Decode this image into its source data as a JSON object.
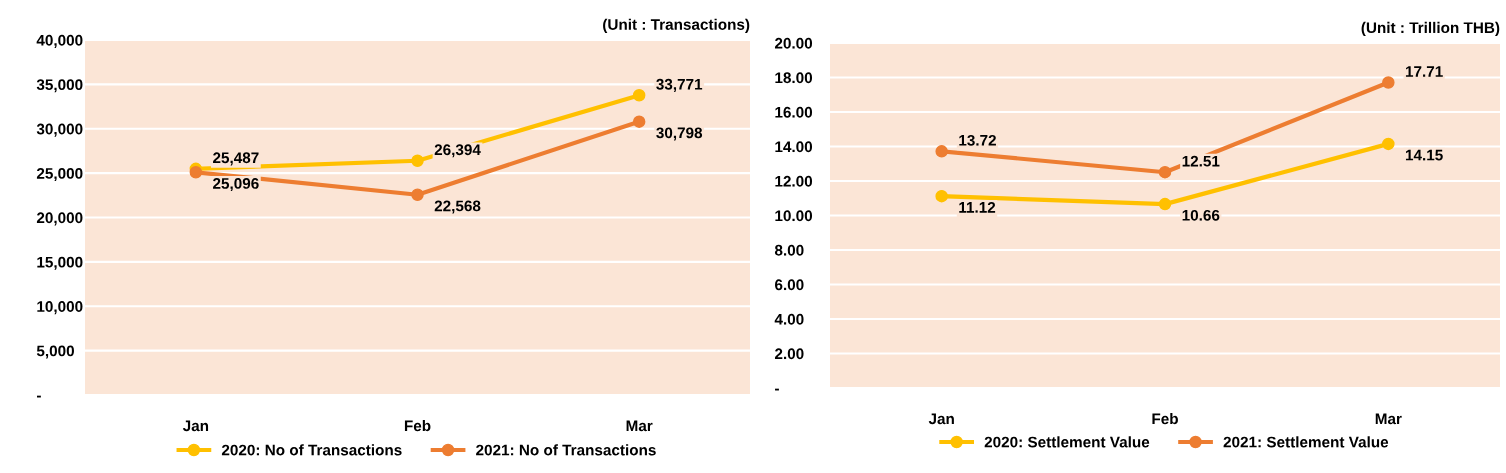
{
  "chart_data": [
    {
      "type": "line",
      "categories": [
        "Jan",
        "Feb",
        "Mar"
      ],
      "ylim": [
        0,
        40000
      ],
      "yticks": [
        {
          "value": 0,
          "label": "-"
        },
        {
          "value": 5000,
          "label": "5,000"
        },
        {
          "value": 10000,
          "label": "10,000"
        },
        {
          "value": 15000,
          "label": "15,000"
        },
        {
          "value": 20000,
          "label": "20,000"
        },
        {
          "value": 25000,
          "label": "25,000"
        },
        {
          "value": 30000,
          "label": "30,000"
        },
        {
          "value": 35000,
          "label": "35,000"
        },
        {
          "value": 40000,
          "label": "40,000"
        }
      ],
      "grid": "y",
      "legend": "bottom",
      "marker": "circle",
      "line_style": "solid",
      "annotations": [
        "(Unit : Transactions)"
      ],
      "series": [
        {
          "name": "2020: No of Transactions",
          "color": "#ffc000",
          "values": [
            25487,
            26394,
            33771
          ],
          "value_labels": [
            "25,487",
            "26,394",
            "33,771"
          ]
        },
        {
          "name": "2021: No of Transactions",
          "color": "#ed7d31",
          "values": [
            25096,
            22568,
            30798
          ],
          "value_labels": [
            "25,096",
            "22,568",
            "30,798"
          ]
        }
      ]
    },
    {
      "type": "line",
      "categories": [
        "Jan",
        "Feb",
        "Mar"
      ],
      "ylim": [
        0,
        20
      ],
      "yticks": [
        {
          "value": 0,
          "label": "-"
        },
        {
          "value": 2,
          "label": "2.00"
        },
        {
          "value": 4,
          "label": "4.00"
        },
        {
          "value": 6,
          "label": "6.00"
        },
        {
          "value": 8,
          "label": "8.00"
        },
        {
          "value": 10,
          "label": "10.00"
        },
        {
          "value": 12,
          "label": "12.00"
        },
        {
          "value": 14,
          "label": "14.00"
        },
        {
          "value": 16,
          "label": "16.00"
        },
        {
          "value": 18,
          "label": "18.00"
        },
        {
          "value": 20,
          "label": "20.00"
        }
      ],
      "grid": "y",
      "legend": "bottom",
      "marker": "circle",
      "line_style": "solid",
      "annotations": [
        "(Unit : Trillion THB)"
      ],
      "series": [
        {
          "name": "2020: Settlement Value",
          "color": "#ffc000",
          "values": [
            11.12,
            10.66,
            14.15
          ],
          "value_labels": [
            "11.12",
            "10.66",
            "14.15"
          ]
        },
        {
          "name": "2021: Settlement Value",
          "color": "#ed7d31",
          "values": [
            13.72,
            12.51,
            17.71
          ],
          "value_labels": [
            "13.72",
            "12.51",
            "17.71"
          ]
        }
      ]
    }
  ]
}
